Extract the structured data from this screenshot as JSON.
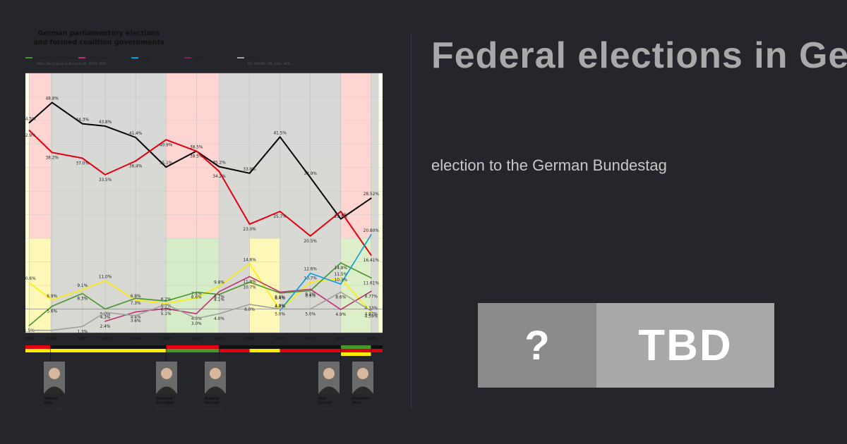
{
  "page": {
    "title": "Federal elections in Germany",
    "subtitle": "election to the German Bundestag",
    "badge_left": "?",
    "badge_right": "TBD"
  },
  "colors": {
    "background": "#24262b",
    "cdu": "#000000",
    "spd": "#e3000f",
    "greens": "#46962b",
    "fdp": "#ffed00",
    "linke": "#be3075",
    "afd": "#009ee0",
    "bsw": "#7d254f",
    "others": "#a0a0a0"
  },
  "chart_data": {
    "type": "line",
    "title_line1": "German parliamentary elections",
    "title_line2": "and formed coalition governments",
    "legend": [
      {
        "name": "Bündnis 90/Die Grünen",
        "sub": "1983: Die Grünen & Bündnis 90",
        "color": "#46962b"
      },
      {
        "name": "Die Linke",
        "sub": "2005: PDS",
        "color": "#be3075"
      },
      {
        "name": "AfD",
        "sub": "",
        "color": "#009ee0"
      },
      {
        "name": "BSW",
        "sub": "",
        "color": "#7d254f"
      },
      {
        "name": "Others",
        "sub": "DF, SRAMR, FW, SSW, NPD...",
        "color": "#a0a0a0"
      }
    ],
    "years": [
      "1980",
      "1983",
      "1987",
      "1990",
      "1994",
      "1998",
      "2002",
      "2005",
      "2009",
      "2013",
      "2017",
      "2021",
      "2025"
    ],
    "ylim": [
      0,
      55
    ],
    "series": [
      {
        "key": "cdu",
        "color": "#000000",
        "points": [
          [
            1980,
            44.5
          ],
          [
            1983,
            48.8
          ],
          [
            1987,
            44.3
          ],
          [
            1990,
            43.8
          ],
          [
            1994,
            41.4
          ],
          [
            1998,
            35.1
          ],
          [
            2002,
            38.5
          ],
          [
            2005,
            35.2
          ],
          [
            2009,
            33.8
          ],
          [
            2013,
            41.5
          ],
          [
            2017,
            32.9
          ],
          [
            2021,
            24.1
          ],
          [
            2025,
            28.52
          ]
        ],
        "labels": [
          "44.5%",
          "48.8%",
          "44.3%",
          "43.8%",
          "41.4%",
          "35.1%",
          "38.5%",
          "35.2%",
          "33.8%",
          "41.5%",
          "32.9%",
          "24.1%",
          "28.52%"
        ]
      },
      {
        "key": "spd",
        "color": "#e3000f",
        "points": [
          [
            1980,
            42.9
          ],
          [
            1983,
            38.2
          ],
          [
            1987,
            37.0
          ],
          [
            1990,
            33.5
          ],
          [
            1994,
            36.4
          ],
          [
            1998,
            40.9
          ],
          [
            2002,
            38.5
          ],
          [
            2005,
            34.2
          ],
          [
            2009,
            23.0
          ],
          [
            2013,
            25.7
          ],
          [
            2017,
            20.5
          ],
          [
            2021,
            25.7
          ],
          [
            2025,
            16.41
          ]
        ],
        "labels": [
          "42.9%",
          "38.2%",
          "37.0%",
          "33.5%",
          "36.4%",
          "40.9%",
          "38.5%",
          "34.2%",
          "23.0%",
          "25.7%",
          "20.5%",
          "25.7%",
          "16.41%"
        ]
      },
      {
        "key": "fdp",
        "color": "#ffed00",
        "points": [
          [
            1980,
            10.6
          ],
          [
            1983,
            6.9
          ],
          [
            1987,
            9.1
          ],
          [
            1990,
            11.0
          ],
          [
            1994,
            6.9
          ],
          [
            1998,
            6.2
          ],
          [
            2002,
            7.4
          ],
          [
            2005,
            9.8
          ],
          [
            2009,
            14.6
          ],
          [
            2013,
            4.8
          ],
          [
            2017,
            10.7
          ],
          [
            2021,
            11.5
          ],
          [
            2025,
            4.33
          ]
        ],
        "labels": [
          "10.6%",
          "6.9%",
          "9.1%",
          "11.0%",
          "6.9%",
          "6.2%",
          "7.4%",
          "9.8%",
          "14.6%",
          "4.8%",
          "10.7%",
          "11.5%",
          "4.33%"
        ]
      },
      {
        "key": "greens",
        "color": "#46962b",
        "points": [
          [
            1980,
            1.5
          ],
          [
            1983,
            5.6
          ],
          [
            1987,
            8.3
          ],
          [
            1990,
            5.0
          ],
          [
            1994,
            7.3
          ],
          [
            1998,
            6.7
          ],
          [
            2002,
            8.6
          ],
          [
            2005,
            8.1
          ],
          [
            2009,
            10.7
          ],
          [
            2013,
            8.4
          ],
          [
            2017,
            8.9
          ],
          [
            2021,
            14.8
          ],
          [
            2025,
            11.61
          ]
        ],
        "labels": [
          "1.5%",
          "5.6%",
          "8.3%",
          "5.0%",
          "7.3%",
          "6.7%",
          "8.6%",
          "8.1%",
          "10.7%",
          "8.4%",
          "8.9%",
          "14.8%",
          "11.61%"
        ]
      },
      {
        "key": "linke",
        "color": "#be3075",
        "points": [
          [
            1990,
            2.4
          ],
          [
            1994,
            4.4
          ],
          [
            1998,
            5.1
          ],
          [
            2002,
            4.0
          ],
          [
            2005,
            8.7
          ],
          [
            2009,
            11.9
          ],
          [
            2013,
            8.6
          ],
          [
            2017,
            9.2
          ],
          [
            2021,
            4.9
          ],
          [
            2025,
            8.77
          ]
        ],
        "labels": [
          "2.4%",
          "4.4%",
          "5.1%",
          "4.0%",
          "8.7%",
          "11.9%",
          "8.6%",
          "9.2%",
          "4.9%",
          "8.77%"
        ]
      },
      {
        "key": "afd",
        "color": "#009ee0",
        "points": [
          [
            2013,
            4.7
          ],
          [
            2017,
            12.6
          ],
          [
            2021,
            10.3
          ],
          [
            2025,
            20.8
          ]
        ],
        "labels": [
          "4.7%",
          "12.6%",
          "10.3%",
          "20.80%"
        ]
      },
      {
        "key": "bsw",
        "color": "#7d254f",
        "points": [
          [
            2025,
            4.97
          ]
        ],
        "labels": [
          "4.97%"
        ]
      },
      {
        "key": "others",
        "color": "#a0a0a0",
        "points": [
          [
            1980,
            0.5
          ],
          [
            1983,
            0.5
          ],
          [
            1987,
            1.3
          ],
          [
            1990,
            4.3
          ],
          [
            1994,
            3.6
          ],
          [
            1998,
            6.0
          ],
          [
            2002,
            3.0
          ],
          [
            2005,
            4.0
          ],
          [
            2009,
            6.0
          ],
          [
            2013,
            5.0
          ],
          [
            2017,
            5.0
          ],
          [
            2021,
            8.6
          ],
          [
            2025,
            4.59
          ]
        ],
        "labels": [
          "0.5%",
          "0.5%",
          "1.3%",
          "4.3%",
          "3.6%",
          "6.0%",
          "3.0%",
          "4.0%",
          "6.0%",
          "5.0%",
          "5.0%",
          "8.6%",
          "4.59%"
        ]
      }
    ],
    "coalitions": [
      {
        "from": 1980,
        "to": 1982.8,
        "type": "spd-fdp",
        "color": "#ffd0d0"
      },
      {
        "from": 1982.8,
        "to": 1998,
        "type": "cdu-fdp",
        "color": "#d4d4d4"
      },
      {
        "from": 1998,
        "to": 2005,
        "type": "spd-greens",
        "color": "#ffd0d0"
      },
      {
        "from": 2005,
        "to": 2009,
        "type": "grand",
        "color": "#d4d4d4"
      },
      {
        "from": 2009,
        "to": 2013,
        "type": "cdu-fdp",
        "color": "#d4d4d4"
      },
      {
        "from": 2013,
        "to": 2021,
        "type": "grand",
        "color": "#d4d4d4"
      },
      {
        "from": 2021,
        "to": 2025,
        "type": "traffic-light",
        "color": "#ffd0d0"
      },
      {
        "from": 2025,
        "to": 2026,
        "type": "cdu-spd",
        "color": "#d4d4d4"
      }
    ],
    "chancellors": [
      {
        "name_line1": "Helmut",
        "name_line2": "Kohl",
        "term": "1982–1998"
      },
      {
        "name_line1": "Gerhard",
        "name_line2": "Schröder",
        "term": "1998–2005"
      },
      {
        "name_line1": "Angela",
        "name_line2": "Merkel",
        "term": "2005–2021"
      },
      {
        "name_line1": "Olaf",
        "name_line2": "Scholz",
        "term": "2021–2025"
      },
      {
        "name_line1": "Friedrich",
        "name_line2": "Merz",
        "term": "2025–"
      }
    ]
  }
}
